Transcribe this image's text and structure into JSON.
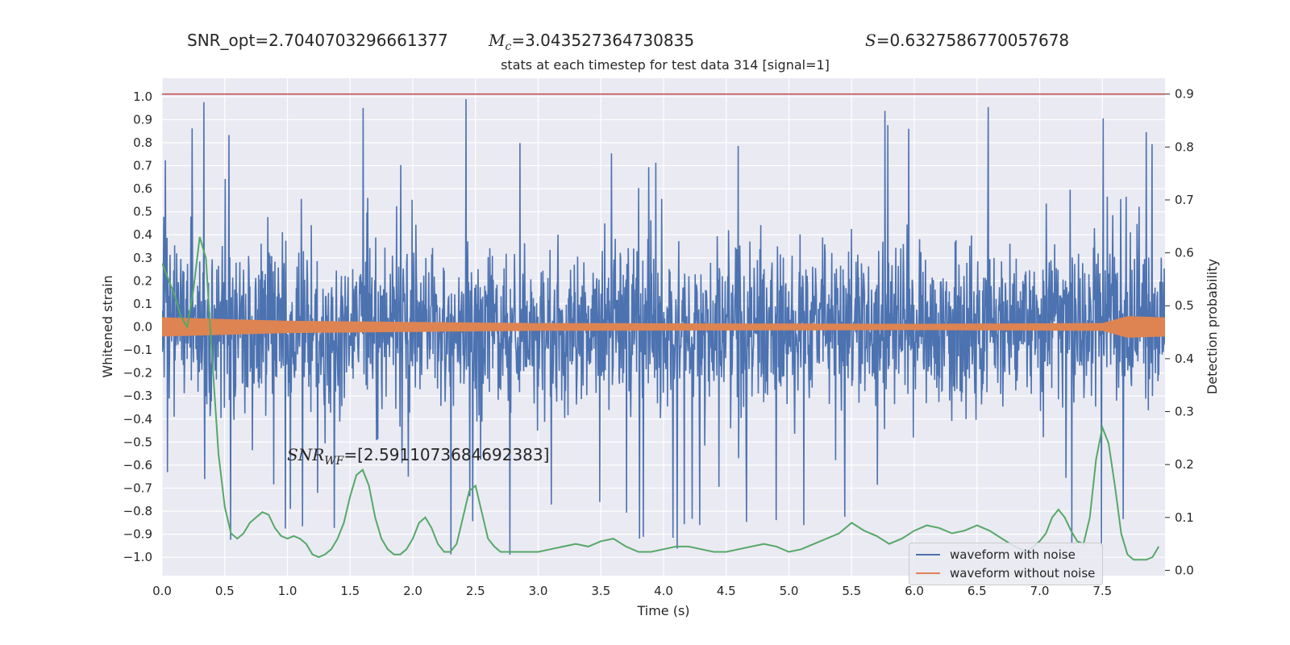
{
  "header": {
    "snr_opt": "SNR_opt=2.7040703296661377",
    "mc_sym": "M",
    "mc_sub": "c",
    "mc_value": "=3.043527364730835",
    "s_sym": "S",
    "s_value": "=0.6327586770057678"
  },
  "annotation": {
    "sym": "SNR",
    "sub": "WF",
    "value": "=[2.5911073684692383]"
  },
  "chart_data": {
    "type": "line",
    "title": "stats at each timestep for test data 314 [signal=1]",
    "xlabel": "Time (s)",
    "ylabel_left": "Whitened strain",
    "ylabel_right": "Detection probability",
    "xlim": [
      0,
      8
    ],
    "ylim_left": [
      -1.08,
      1.08
    ],
    "ylim_right": [
      -0.01,
      0.93
    ],
    "x_ticks": [
      "0.0",
      "0.5",
      "1.0",
      "1.5",
      "2.0",
      "2.5",
      "3.0",
      "3.5",
      "4.0",
      "4.5",
      "5.0",
      "5.5",
      "6.0",
      "6.5",
      "7.0",
      "7.5"
    ],
    "y_ticks_left": [
      "1.0",
      "0.9",
      "0.8",
      "0.7",
      "0.6",
      "0.5",
      "0.4",
      "0.3",
      "0.2",
      "0.1",
      "0.0",
      "−0.1",
      "−0.2",
      "−0.3",
      "−0.4",
      "−0.5",
      "−0.6",
      "−0.7",
      "−0.8",
      "−0.9",
      "−1.0"
    ],
    "y_ticks_right": [
      "0.9",
      "0.8",
      "0.7",
      "0.6",
      "0.5",
      "0.4",
      "0.3",
      "0.2",
      "0.1",
      "0.0"
    ],
    "threshold": {
      "value": 0.9,
      "axis": "right",
      "color": "#c44e52"
    },
    "grid": true,
    "legend_position": "lower-right",
    "series": [
      {
        "name": "waveform with noise",
        "color": "#4c72b0",
        "axis": "left",
        "kind": "noise",
        "envelope": {
          "typical_amplitude": 0.45,
          "max_amplitude": 0.99
        }
      },
      {
        "name": "waveform without noise",
        "color": "#dd8452",
        "axis": "left",
        "kind": "chirp",
        "envelope": [
          [
            0.0,
            0.04
          ],
          [
            1.0,
            0.025
          ],
          [
            3.0,
            0.015
          ],
          [
            6.0,
            0.012
          ],
          [
            7.5,
            0.015
          ],
          [
            7.7,
            0.045
          ],
          [
            8.0,
            0.04
          ]
        ]
      },
      {
        "name": "",
        "color": "#55a868",
        "axis": "right",
        "x": [
          0.0,
          0.05,
          0.1,
          0.15,
          0.2,
          0.25,
          0.3,
          0.35,
          0.4,
          0.45,
          0.5,
          0.55,
          0.6,
          0.65,
          0.7,
          0.75,
          0.8,
          0.85,
          0.9,
          0.95,
          1.0,
          1.05,
          1.1,
          1.15,
          1.2,
          1.25,
          1.3,
          1.35,
          1.4,
          1.45,
          1.5,
          1.55,
          1.6,
          1.65,
          1.7,
          1.75,
          1.8,
          1.85,
          1.9,
          1.95,
          2.0,
          2.05,
          2.1,
          2.15,
          2.2,
          2.25,
          2.3,
          2.35,
          2.4,
          2.45,
          2.5,
          2.55,
          2.6,
          2.65,
          2.7,
          2.75,
          2.8,
          2.85,
          2.9,
          2.95,
          3.0,
          3.1,
          3.2,
          3.3,
          3.4,
          3.5,
          3.6,
          3.7,
          3.8,
          3.9,
          4.0,
          4.1,
          4.2,
          4.3,
          4.4,
          4.5,
          4.6,
          4.7,
          4.8,
          4.9,
          5.0,
          5.1,
          5.2,
          5.3,
          5.4,
          5.5,
          5.6,
          5.7,
          5.8,
          5.9,
          6.0,
          6.1,
          6.2,
          6.3,
          6.4,
          6.5,
          6.6,
          6.7,
          6.8,
          6.9,
          7.0,
          7.05,
          7.1,
          7.15,
          7.2,
          7.25,
          7.3,
          7.35,
          7.4,
          7.45,
          7.5,
          7.55,
          7.6,
          7.65,
          7.7,
          7.75,
          7.8,
          7.85,
          7.9,
          7.95
        ],
        "y": [
          0.58,
          0.55,
          0.52,
          0.48,
          0.46,
          0.53,
          0.63,
          0.59,
          0.4,
          0.22,
          0.12,
          0.07,
          0.06,
          0.07,
          0.09,
          0.1,
          0.11,
          0.105,
          0.08,
          0.065,
          0.06,
          0.065,
          0.06,
          0.05,
          0.03,
          0.025,
          0.03,
          0.04,
          0.06,
          0.09,
          0.14,
          0.18,
          0.19,
          0.16,
          0.1,
          0.06,
          0.04,
          0.03,
          0.03,
          0.04,
          0.06,
          0.09,
          0.1,
          0.08,
          0.05,
          0.035,
          0.035,
          0.05,
          0.1,
          0.15,
          0.16,
          0.11,
          0.06,
          0.045,
          0.035,
          0.035,
          0.035,
          0.035,
          0.035,
          0.035,
          0.035,
          0.04,
          0.045,
          0.05,
          0.045,
          0.055,
          0.06,
          0.045,
          0.035,
          0.035,
          0.04,
          0.045,
          0.045,
          0.04,
          0.035,
          0.035,
          0.04,
          0.045,
          0.05,
          0.045,
          0.035,
          0.04,
          0.05,
          0.06,
          0.07,
          0.09,
          0.075,
          0.065,
          0.05,
          0.06,
          0.075,
          0.085,
          0.08,
          0.07,
          0.075,
          0.085,
          0.075,
          0.06,
          0.045,
          0.035,
          0.055,
          0.07,
          0.1,
          0.115,
          0.1,
          0.075,
          0.055,
          0.05,
          0.1,
          0.21,
          0.27,
          0.24,
          0.16,
          0.07,
          0.03,
          0.02,
          0.02,
          0.02,
          0.025,
          0.045
        ]
      }
    ]
  }
}
